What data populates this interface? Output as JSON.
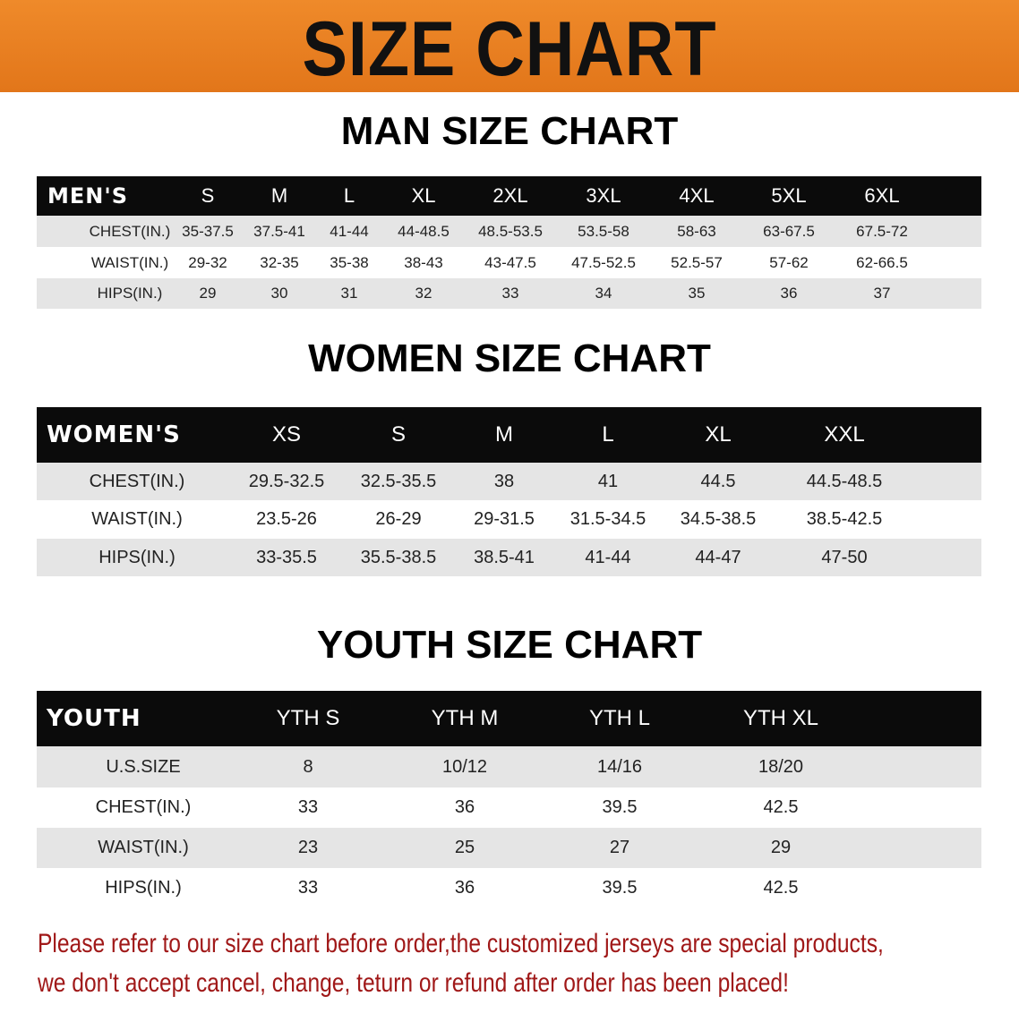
{
  "banner": {
    "title": "SIZE CHART",
    "color": "#e8791c"
  },
  "men": {
    "title": "MAN SIZE CHART",
    "header": [
      "MEN'S",
      "S",
      "M",
      "L",
      "XL",
      "2XL",
      "3XL",
      "4XL",
      "5XL",
      "6XL"
    ],
    "rows": [
      [
        "CHEST(IN.)",
        "35-37.5",
        "37.5-41",
        "41-44",
        "44-48.5",
        "48.5-53.5",
        "53.5-58",
        "58-63",
        "63-67.5",
        "67.5-72"
      ],
      [
        "WAIST(IN.)",
        "29-32",
        "32-35",
        "35-38",
        "38-43",
        "43-47.5",
        "47.5-52.5",
        "52.5-57",
        "57-62",
        "62-66.5"
      ],
      [
        "HIPS(IN.)",
        "29",
        "30",
        "31",
        "32",
        "33",
        "34",
        "35",
        "36",
        "37"
      ]
    ]
  },
  "women": {
    "title": "WOMEN SIZE CHART",
    "header": [
      "WOMEN'S",
      "XS",
      "S",
      "M",
      "L",
      "XL",
      "XXL"
    ],
    "rows": [
      [
        "CHEST(IN.)",
        "29.5-32.5",
        "32.5-35.5",
        "38",
        "41",
        "44.5",
        "44.5-48.5"
      ],
      [
        "WAIST(IN.)",
        "23.5-26",
        "26-29",
        "29-31.5",
        "31.5-34.5",
        "34.5-38.5",
        "38.5-42.5"
      ],
      [
        "HIPS(IN.)",
        "33-35.5",
        "35.5-38.5",
        "38.5-41",
        "41-44",
        "44-47",
        "47-50"
      ]
    ]
  },
  "youth": {
    "title": "YOUTH SIZE CHART",
    "header": [
      "YOUTH",
      "YTH S",
      "YTH M",
      "YTH L",
      "YTH XL"
    ],
    "rows": [
      [
        "U.S.SIZE",
        "8",
        "10/12",
        "14/16",
        "18/20"
      ],
      [
        "CHEST(IN.)",
        "33",
        "36",
        "39.5",
        "42.5"
      ],
      [
        "WAIST(IN.)",
        "23",
        "25",
        "27",
        "29"
      ],
      [
        "HIPS(IN.)",
        "33",
        "36",
        "39.5",
        "42.5"
      ]
    ]
  },
  "note": {
    "line1": "Please refer to our size chart before order,the customized jerseys are special products,",
    "line2": "we don't accept cancel, change, teturn or refund after order has been placed!",
    "color": "#a01818"
  }
}
